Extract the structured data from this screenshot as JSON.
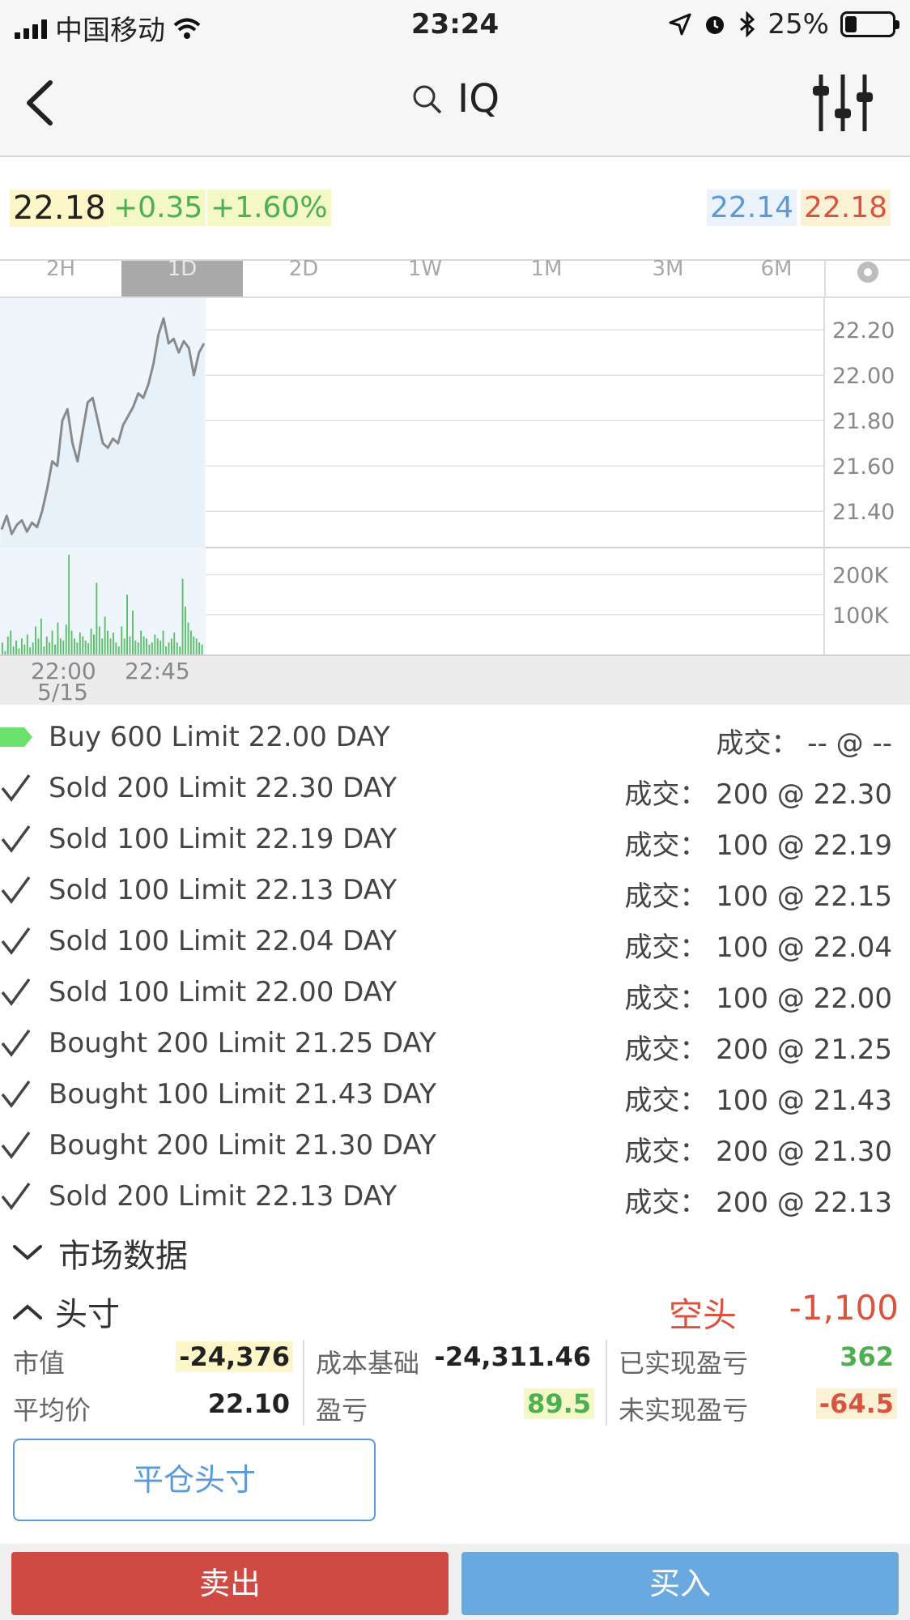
{
  "status_bar": {
    "carrier": "中国移动",
    "time": "23:24",
    "battery_pct": "25%",
    "battery_level": 0.25
  },
  "nav": {
    "symbol": "IQ"
  },
  "quote": {
    "last": "22.18",
    "change": "+0.35",
    "change_pct": "+1.60%",
    "bid": "22.14",
    "ask": "22.18"
  },
  "tabs": [
    {
      "label": "2H",
      "active": false
    },
    {
      "label": "1D",
      "active": true
    },
    {
      "label": "2D",
      "active": false
    },
    {
      "label": "1W",
      "active": false
    },
    {
      "label": "1M",
      "active": false
    },
    {
      "label": "3M",
      "active": false
    },
    {
      "label": "6M",
      "active": false
    }
  ],
  "chart_data": {
    "type": "line",
    "price_ticks": [
      "22.20",
      "22.00",
      "21.80",
      "21.60",
      "21.40"
    ],
    "volume_ticks": [
      "200K",
      "100K"
    ],
    "x_tick_labels": [
      "22:00",
      "22:45"
    ],
    "x_sub_label": "5/15",
    "price_series": {
      "x": [
        0,
        1,
        2,
        3,
        4,
        5,
        6,
        7,
        8,
        9,
        10,
        11,
        12,
        13,
        14,
        15,
        16,
        17,
        18,
        19,
        20,
        21,
        22,
        23,
        24,
        25,
        26,
        27,
        28,
        29,
        30,
        31,
        32,
        33,
        34,
        35,
        36,
        37,
        38,
        39,
        40
      ],
      "y": [
        21.32,
        21.38,
        21.3,
        21.34,
        21.36,
        21.31,
        21.35,
        21.33,
        21.4,
        21.5,
        21.62,
        21.6,
        21.8,
        21.85,
        21.7,
        21.62,
        21.75,
        21.88,
        21.9,
        21.8,
        21.7,
        21.68,
        21.72,
        21.7,
        21.78,
        21.82,
        21.86,
        21.92,
        21.9,
        21.96,
        22.05,
        22.18,
        22.25,
        22.14,
        22.16,
        22.1,
        22.15,
        22.12,
        22.0,
        22.1,
        22.14
      ]
    },
    "volume_series": {
      "values": [
        30,
        8,
        45,
        60,
        20,
        35,
        15,
        40,
        25,
        50,
        18,
        30,
        70,
        40,
        90,
        20,
        45,
        30,
        60,
        25,
        80,
        40,
        35,
        75,
        250,
        60,
        40,
        30,
        55,
        45,
        35,
        28,
        65,
        50,
        180,
        70,
        40,
        95,
        60,
        40,
        55,
        30,
        20,
        70,
        40,
        150,
        45,
        110,
        35,
        30,
        60,
        45,
        40,
        25,
        30,
        50,
        40,
        35,
        60,
        20,
        30,
        40,
        55,
        30,
        20,
        190,
        120,
        80,
        60,
        45,
        40,
        30,
        25
      ]
    }
  },
  "orders": [
    {
      "status": "working",
      "desc": "Buy 600 Limit 22.00 DAY",
      "fill": "成交：  -- @ --"
    },
    {
      "status": "filled",
      "desc": "Sold 200 Limit 22.30 DAY",
      "fill": "成交：  200 @ 22.30"
    },
    {
      "status": "filled",
      "desc": "Sold 100 Limit 22.19 DAY",
      "fill": "成交：  100 @ 22.19"
    },
    {
      "status": "filled",
      "desc": "Sold 100 Limit 22.13 DAY",
      "fill": "成交：  100 @ 22.15"
    },
    {
      "status": "filled",
      "desc": "Sold 100 Limit 22.04 DAY",
      "fill": "成交：  100 @ 22.04"
    },
    {
      "status": "filled",
      "desc": "Sold 100 Limit 22.00 DAY",
      "fill": "成交：  100 @ 22.00"
    },
    {
      "status": "filled",
      "desc": "Bought 200 Limit 21.25 DAY",
      "fill": "成交：  200 @ 21.25"
    },
    {
      "status": "filled",
      "desc": "Bought 100 Limit 21.43 DAY",
      "fill": "成交：  100 @ 21.43"
    },
    {
      "status": "filled",
      "desc": "Bought 200 Limit 21.30 DAY",
      "fill": "成交：  200 @ 21.30"
    },
    {
      "status": "filled",
      "desc": "Sold 200 Limit 22.13 DAY",
      "fill": "成交：  200 @ 22.13"
    }
  ],
  "market_section": {
    "label": "市场数据"
  },
  "position": {
    "label": "头寸",
    "direction": "空头",
    "quantity": "-1,100"
  },
  "stats": {
    "market_value": {
      "label": "市值",
      "value": "-24,376"
    },
    "avg_price": {
      "label": "平均价",
      "value": "22.10"
    },
    "cost_basis": {
      "label": "成本基础",
      "value": "-24,311.46"
    },
    "pnl": {
      "label": "盈亏",
      "value": "89.5"
    },
    "realized": {
      "label": "已实现盈亏",
      "value": "362"
    },
    "unrealized": {
      "label": "未实现盈亏",
      "value": "-64.5"
    }
  },
  "actions": {
    "close_position": "平仓头寸",
    "sell": "卖出",
    "buy": "买入"
  },
  "colors": {
    "buy": "#6aa9e0",
    "sell": "#cf4a43",
    "up": "#4caf50",
    "down": "#d9533f"
  }
}
